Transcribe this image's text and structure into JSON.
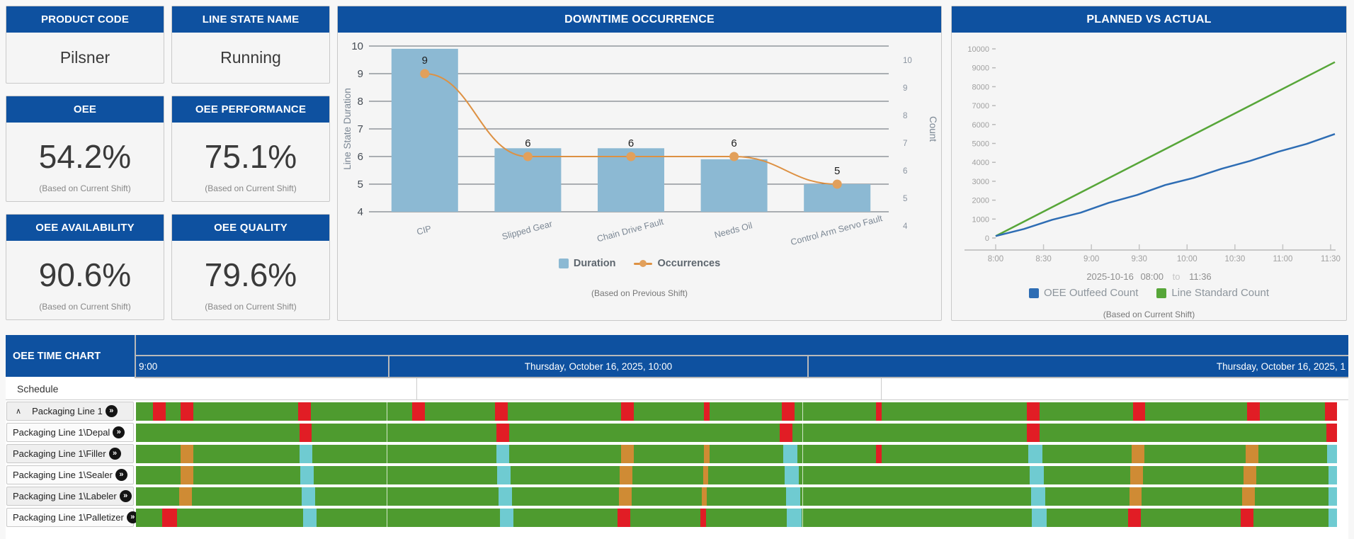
{
  "theme": {
    "header_blue": "#0e51a0",
    "panel_bg": "#f5f5f5",
    "border": "#c9c9c9",
    "bar_blue": "#8cb9d3",
    "occ_line_orange": "#dd9143",
    "occ_dot_orange": "#e2a05b",
    "gantt_green": "#4e9b2f",
    "gantt_red": "#e11d25",
    "gantt_orange": "#cf8b34",
    "gantt_cyan": "#6fcbd1",
    "planned_blue": "#2e6db4",
    "planned_green": "#57a639",
    "grid_gray": "#5f6670",
    "axis_text": "#a0a0a0",
    "slate_label": "#7b8794"
  },
  "kpi_cards": [
    {
      "title": "PRODUCT CODE",
      "value": "Pilsner",
      "subtitle": "",
      "size": "small"
    },
    {
      "title": "LINE STATE NAME",
      "value": "Running",
      "subtitle": "",
      "size": "small"
    },
    {
      "title": "OEE",
      "value": "54.2%",
      "subtitle": "(Based on Current Shift)",
      "size": "big"
    },
    {
      "title": "OEE PERFORMANCE",
      "value": "75.1%",
      "subtitle": "(Based on Current Shift)",
      "size": "big"
    },
    {
      "title": "OEE AVAILABILITY",
      "value": "90.6%",
      "subtitle": "(Based on Current Shift)",
      "size": "big"
    },
    {
      "title": "OEE QUALITY",
      "value": "79.6%",
      "subtitle": "(Based on Current Shift)",
      "size": "big"
    }
  ],
  "downtime": {
    "title": "DOWNTIME OCCURRENCE",
    "ylabel": "Line State Duration",
    "ylabel_right": "Count",
    "yticks": [
      10,
      9,
      8,
      7,
      6,
      5,
      4
    ],
    "right_yticks": [
      10,
      9,
      8,
      7,
      6,
      5,
      4
    ],
    "categories": [
      "CIP",
      "Slipped Gear",
      "Chain Drive Fault",
      "Needs Oil",
      "Control Arm Servo Fault"
    ],
    "durations": [
      9.9,
      6.3,
      6.3,
      5.9,
      5.0
    ],
    "occurrences": [
      9,
      6,
      6,
      6,
      5
    ],
    "point_labels": [
      "9",
      "6",
      "6",
      "6",
      "5"
    ],
    "ymin": 4,
    "ymax": 10,
    "legend": [
      {
        "label": "Duration",
        "swatch": "square",
        "color": "#8cb9d3"
      },
      {
        "label": "Occurrences",
        "swatch": "line-dot",
        "color": "#dd9143"
      }
    ],
    "subtitle": "(Based on Previous Shift)"
  },
  "planned": {
    "title": "PLANNED VS ACTUAL",
    "yticks": [
      10000,
      9000,
      8000,
      7000,
      6000,
      5000,
      4000,
      3000,
      2000,
      1000,
      0
    ],
    "xticks": [
      "8:00",
      "8:30",
      "9:00",
      "9:30",
      "10:00",
      "10:30",
      "11:00",
      "11:30"
    ],
    "date": "2025-10-16",
    "start_time": "08:00",
    "to_word": "to",
    "end_time": "11:36",
    "legend": [
      {
        "label": "OEE Outfeed Count",
        "color": "#2e6db4"
      },
      {
        "label": "Line Standard Count",
        "color": "#57a639"
      }
    ],
    "series": [
      {
        "name": "OEE Outfeed Count",
        "start": 0,
        "end": 5500,
        "color": "#2e6db4"
      },
      {
        "name": "Line Standard Count",
        "start": 0,
        "end": 9300,
        "color": "#57a639"
      }
    ],
    "subtitle": "(Based on Current Shift)"
  },
  "gantt": {
    "title": "OEE TIME CHART",
    "columns": [
      {
        "label": "9:00",
        "align": "left",
        "width_pct": 20.9
      },
      {
        "label": "Thursday, October 16, 2025, 10:00",
        "align": "center",
        "width_pct": 34.6
      },
      {
        "label": "Thursday, October 16, 2025, 1",
        "align": "right",
        "width_pct": 44.5
      }
    ],
    "column_divider_pcts": [
      20.9,
      55.5
    ],
    "schedule_label": "Schedule",
    "rows": [
      {
        "label": "Packaging Line 1",
        "collapse_icon": "∧",
        "has_ff_icon": true,
        "segments": [
          {
            "p": 1.4,
            "w": 1.05,
            "c": "red"
          },
          {
            "p": 3.7,
            "w": 1.05,
            "c": "red"
          },
          {
            "p": 13.5,
            "w": 1.05,
            "c": "red"
          },
          {
            "p": 23.0,
            "w": 1.05,
            "c": "red"
          },
          {
            "p": 29.9,
            "w": 1.05,
            "c": "red"
          },
          {
            "p": 40.4,
            "w": 1.05,
            "c": "red"
          },
          {
            "p": 47.3,
            "w": 0.45,
            "c": "red"
          },
          {
            "p": 53.8,
            "w": 1.05,
            "c": "red"
          },
          {
            "p": 61.6,
            "w": 0.5,
            "c": "red"
          },
          {
            "p": 74.2,
            "w": 1.05,
            "c": "red"
          },
          {
            "p": 83.0,
            "w": 1.05,
            "c": "red"
          },
          {
            "p": 92.5,
            "w": 1.05,
            "c": "red"
          },
          {
            "p": 99.0,
            "w": 1.0,
            "c": "red"
          }
        ]
      },
      {
        "label": "Packaging Line 1\\Depal",
        "has_ff_icon": true,
        "segments": [
          {
            "p": 13.6,
            "w": 1.05,
            "c": "red"
          },
          {
            "p": 30.0,
            "w": 1.05,
            "c": "red"
          },
          {
            "p": 53.6,
            "w": 1.05,
            "c": "red"
          },
          {
            "p": 74.2,
            "w": 1.05,
            "c": "red"
          },
          {
            "p": 99.1,
            "w": 0.9,
            "c": "red"
          }
        ]
      },
      {
        "label": "Packaging Line 1\\Filler",
        "has_ff_icon": true,
        "segments": [
          {
            "p": 3.7,
            "w": 1.05,
            "c": "orange"
          },
          {
            "p": 13.6,
            "w": 1.1,
            "c": "cyan"
          },
          {
            "p": 30.0,
            "w": 1.1,
            "c": "cyan"
          },
          {
            "p": 40.4,
            "w": 1.05,
            "c": "orange"
          },
          {
            "p": 47.3,
            "w": 0.45,
            "c": "orange"
          },
          {
            "p": 53.9,
            "w": 1.2,
            "c": "cyan"
          },
          {
            "p": 61.6,
            "w": 0.5,
            "c": "red"
          },
          {
            "p": 74.3,
            "w": 1.2,
            "c": "cyan"
          },
          {
            "p": 82.9,
            "w": 1.05,
            "c": "orange"
          },
          {
            "p": 92.4,
            "w": 1.05,
            "c": "orange"
          },
          {
            "p": 99.2,
            "w": 0.8,
            "c": "cyan"
          }
        ]
      },
      {
        "label": "Packaging Line 1\\Sealer",
        "has_ff_icon": true,
        "segments": [
          {
            "p": 3.7,
            "w": 1.05,
            "c": "orange"
          },
          {
            "p": 13.7,
            "w": 1.1,
            "c": "cyan"
          },
          {
            "p": 30.1,
            "w": 1.1,
            "c": "cyan"
          },
          {
            "p": 40.3,
            "w": 1.05,
            "c": "orange"
          },
          {
            "p": 47.2,
            "w": 0.45,
            "c": "orange"
          },
          {
            "p": 54.0,
            "w": 1.2,
            "c": "cyan"
          },
          {
            "p": 74.4,
            "w": 1.2,
            "c": "cyan"
          },
          {
            "p": 82.8,
            "w": 1.05,
            "c": "orange"
          },
          {
            "p": 92.2,
            "w": 1.05,
            "c": "orange"
          },
          {
            "p": 99.3,
            "w": 0.7,
            "c": "cyan"
          }
        ]
      },
      {
        "label": "Packaging Line 1\\Labeler",
        "has_ff_icon": true,
        "segments": [
          {
            "p": 3.6,
            "w": 1.05,
            "c": "orange"
          },
          {
            "p": 13.8,
            "w": 1.1,
            "c": "cyan"
          },
          {
            "p": 30.2,
            "w": 1.1,
            "c": "cyan"
          },
          {
            "p": 40.2,
            "w": 1.05,
            "c": "orange"
          },
          {
            "p": 47.1,
            "w": 0.45,
            "c": "orange"
          },
          {
            "p": 54.1,
            "w": 1.2,
            "c": "cyan"
          },
          {
            "p": 74.5,
            "w": 1.2,
            "c": "cyan"
          },
          {
            "p": 82.7,
            "w": 1.05,
            "c": "orange"
          },
          {
            "p": 92.1,
            "w": 1.05,
            "c": "orange"
          },
          {
            "p": 99.3,
            "w": 0.7,
            "c": "cyan"
          }
        ]
      },
      {
        "label": "Packaging Line 1\\Palletizer",
        "has_ff_icon": true,
        "segments": [
          {
            "p": 2.2,
            "w": 1.2,
            "c": "red"
          },
          {
            "p": 13.9,
            "w": 1.15,
            "c": "cyan"
          },
          {
            "p": 30.3,
            "w": 1.15,
            "c": "cyan"
          },
          {
            "p": 40.1,
            "w": 1.05,
            "c": "red"
          },
          {
            "p": 47.0,
            "w": 0.45,
            "c": "red"
          },
          {
            "p": 54.2,
            "w": 1.25,
            "c": "cyan"
          },
          {
            "p": 74.6,
            "w": 1.25,
            "c": "cyan"
          },
          {
            "p": 82.6,
            "w": 1.05,
            "c": "red"
          },
          {
            "p": 92.0,
            "w": 1.05,
            "c": "red"
          },
          {
            "p": 99.3,
            "w": 0.7,
            "c": "cyan"
          }
        ]
      }
    ]
  },
  "chart_data": [
    {
      "type": "bar",
      "title": "DOWNTIME OCCURRENCE",
      "categories": [
        "CIP",
        "Slipped Gear",
        "Chain Drive Fault",
        "Needs Oil",
        "Control Arm Servo Fault"
      ],
      "series": [
        {
          "name": "Duration",
          "type": "bar",
          "values": [
            9.9,
            6.3,
            6.3,
            5.9,
            5.0
          ]
        },
        {
          "name": "Occurrences",
          "type": "line",
          "values": [
            9,
            6,
            6,
            6,
            5
          ]
        }
      ],
      "ylabel": "Line State Duration",
      "ylabel_right": "Count",
      "ylim": [
        4,
        10
      ],
      "legend_position": "bottom"
    },
    {
      "type": "line",
      "title": "PLANNED VS ACTUAL",
      "x": [
        "8:00",
        "8:30",
        "9:00",
        "9:30",
        "10:00",
        "10:30",
        "11:00",
        "11:30"
      ],
      "series": [
        {
          "name": "OEE Outfeed Count",
          "start": 0,
          "end": 5500
        },
        {
          "name": "Line Standard Count",
          "start": 0,
          "end": 9300
        }
      ],
      "ylim": [
        0,
        10000
      ],
      "grid": false,
      "legend_position": "bottom"
    }
  ]
}
